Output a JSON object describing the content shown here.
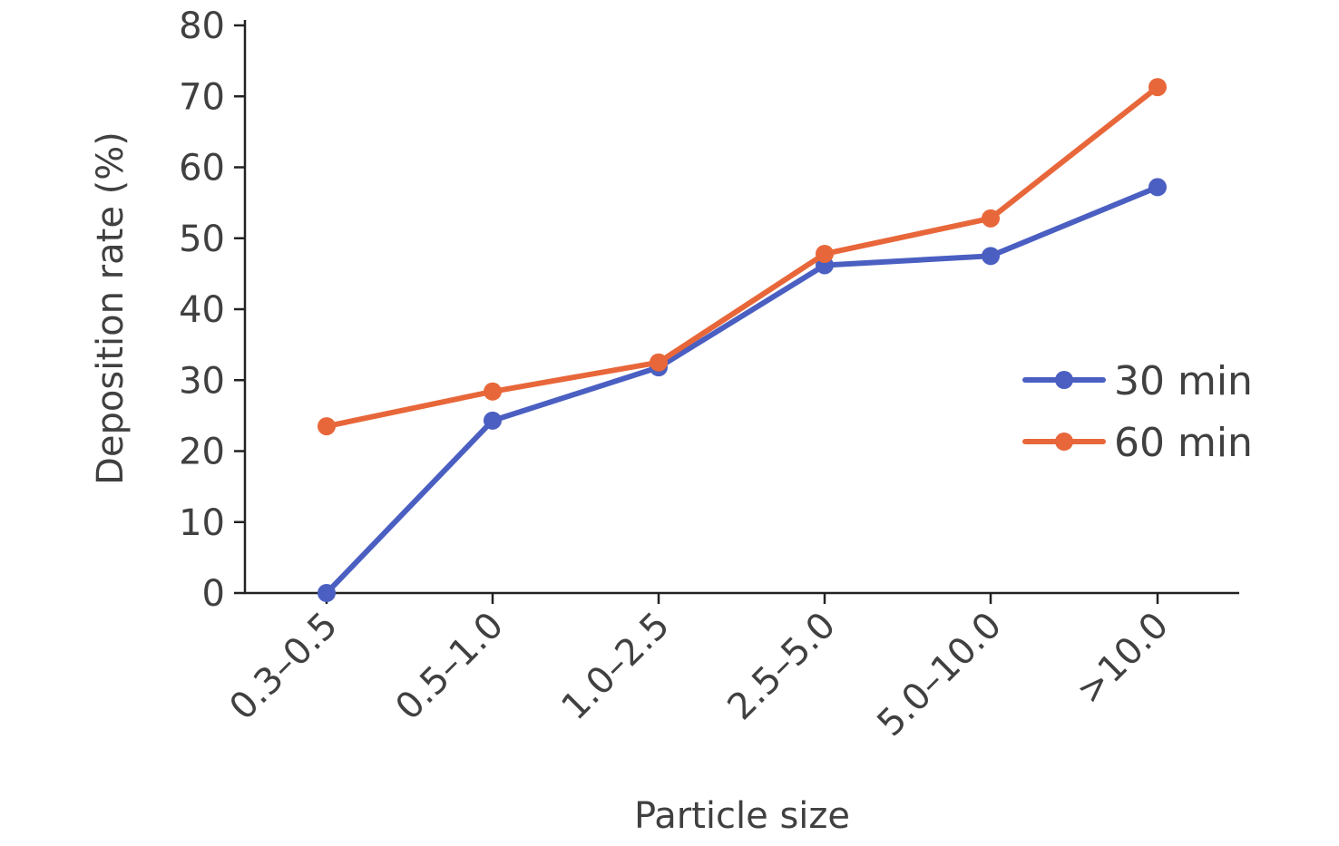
{
  "chart_data": {
    "type": "line",
    "xlabel": "Particle size",
    "ylabel": "Deposition rate (%)",
    "categories": [
      "0.3–0.5",
      "0.5–1.0",
      "1.0–2.5",
      "2.5–5.0",
      "5.0–10.0",
      ">10.0"
    ],
    "ylim": [
      0,
      80
    ],
    "yticks": [
      0,
      10,
      20,
      30,
      40,
      50,
      60,
      70,
      80
    ],
    "grid": false,
    "legend_position": "right",
    "series": [
      {
        "name": "30 min",
        "color": "#4a5fc1",
        "values": [
          0,
          24.3,
          31.8,
          46.2,
          47.5,
          57.2
        ]
      },
      {
        "name": "60 min",
        "color": "#e8673a",
        "values": [
          23.5,
          28.4,
          32.5,
          47.8,
          52.8,
          71.3
        ]
      }
    ]
  }
}
